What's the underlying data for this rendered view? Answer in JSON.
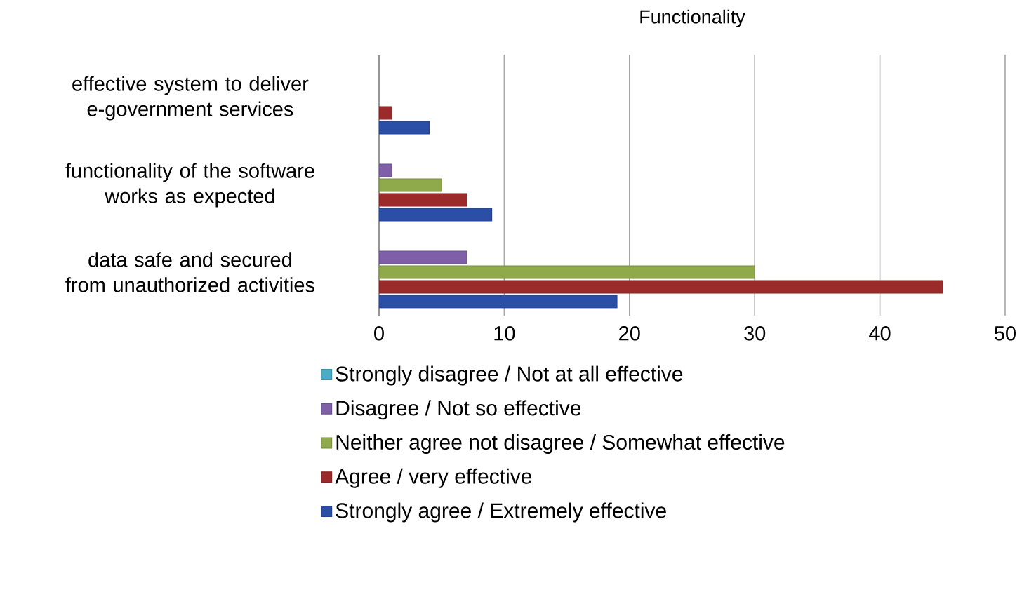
{
  "chart_data": {
    "type": "bar",
    "orientation": "horizontal",
    "title": "Functionality",
    "categories": [
      "effective system to deliver e-government services",
      "functionality of the software works as expected",
      "data safe and secured from unauthorized activities"
    ],
    "series": [
      {
        "name": "Strongly disagree / Not at all effective",
        "color": "#4bacc6",
        "values": [
          null,
          null,
          null
        ]
      },
      {
        "name": "Disagree / Not so effective",
        "color": "#7f5fa8",
        "values": [
          null,
          1,
          7
        ]
      },
      {
        "name": "Neither agree not disagree / Somewhat effective",
        "color": "#8faa4b",
        "values": [
          null,
          5,
          30
        ]
      },
      {
        "name": "Agree / very effective",
        "color": "#9b2a2b",
        "values": [
          1,
          7,
          45
        ]
      },
      {
        "name": "Strongly agree / Extremely effective",
        "color": "#2b4ea6",
        "values": [
          4,
          9,
          19
        ]
      }
    ],
    "xlim": [
      0,
      50
    ],
    "xticks": [
      0,
      10,
      20,
      30,
      40,
      50
    ],
    "grid": "x",
    "legend": "bottom"
  }
}
